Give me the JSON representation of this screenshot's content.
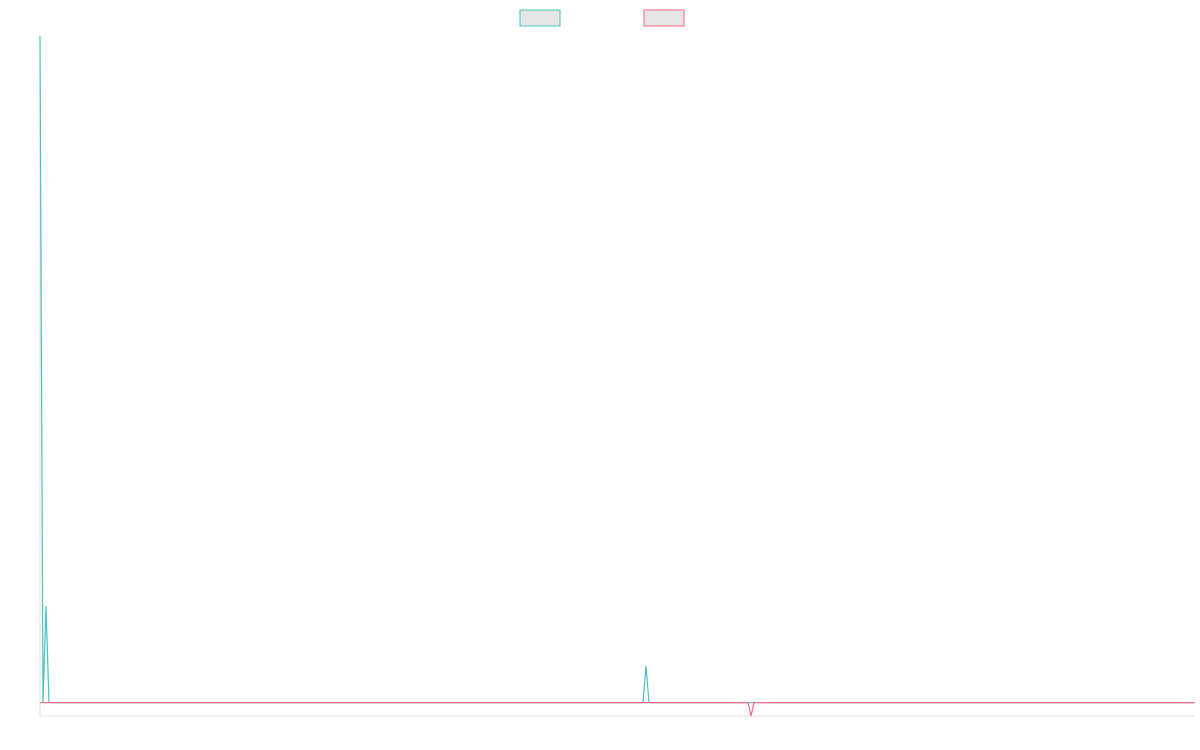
{
  "chart_data": {
    "type": "line",
    "x": [
      0,
      1,
      2,
      3,
      171,
      201,
      202,
      203,
      236,
      237,
      238,
      385
    ],
    "series": [
      {
        "color": "#4bc0c0",
        "values": [
          100,
          0,
          14.5,
          0,
          0,
          0,
          5.5,
          0,
          0,
          0,
          0,
          0
        ]
      },
      {
        "color": "#ff6384",
        "values": [
          0,
          0,
          0,
          0,
          0,
          0,
          0,
          0,
          0,
          -2,
          0,
          0
        ]
      }
    ],
    "xlim": [
      0,
      385
    ],
    "ylim": [
      -2,
      100
    ],
    "legend": "top"
  }
}
